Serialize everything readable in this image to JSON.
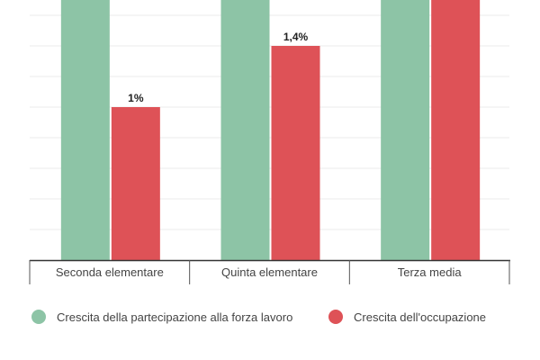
{
  "chart_data": {
    "type": "bar",
    "categories": [
      "Seconda elementare",
      "Quinta elementare",
      "Terza media"
    ],
    "series": [
      {
        "name": "Crescita della partecipazione alla forza lavoro",
        "color": "#8dc4a6",
        "values": [
          null,
          null,
          null
        ],
        "labels": [
          "",
          "",
          ""
        ]
      },
      {
        "name": "Crescita dell'occupazione",
        "color": "#de5257",
        "values": [
          1.0,
          1.4,
          null
        ],
        "labels": [
          "1%",
          "1,4%",
          ""
        ]
      }
    ],
    "ylim": [
      0,
      1.7
    ],
    "grid_step": 0.2,
    "grid": true,
    "legend_position": "bottom"
  }
}
